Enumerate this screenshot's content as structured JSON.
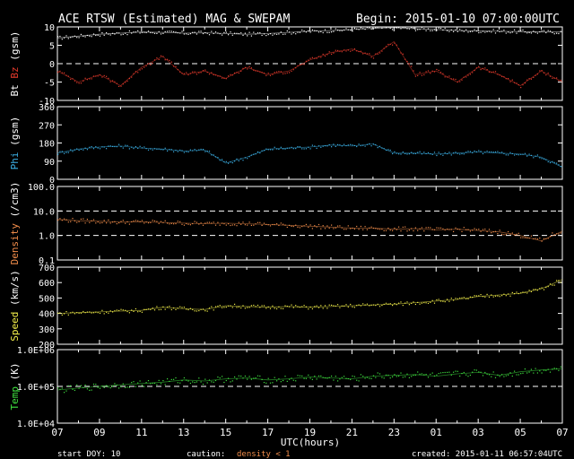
{
  "header": {
    "title": "ACE RTSW (Estimated) MAG & SWEPAM",
    "begin": "Begin: 2015-01-10 07:00:00UTC"
  },
  "footer": {
    "start_doy": "start DOY:  10",
    "caution": "caution:",
    "density_note": "density < 1",
    "created": "created: 2015-01-11 06:57:04UTC"
  },
  "colors": {
    "bt": "#ffffff",
    "bz": "#e43a2c",
    "phi": "#3bb0e6",
    "density": "#f08c4a",
    "speed": "#f2ee4a",
    "temp": "#3fe03f",
    "frame": "#ffffff",
    "background": "#000000"
  },
  "chart_data": [
    {
      "type": "scatter",
      "panel": "mag",
      "ylabel_parts": [
        "Bt",
        "Bz",
        "(gsm)"
      ],
      "ylim": [
        -10,
        10
      ],
      "yticks": [
        10,
        5,
        0,
        -5,
        -10
      ],
      "ref_lines": [
        0
      ],
      "x_hours": [
        0,
        1,
        2,
        3,
        4,
        5,
        6,
        7,
        8,
        9,
        10,
        11,
        12,
        13,
        14,
        15,
        16,
        17,
        18,
        19,
        20,
        21,
        22,
        23,
        24
      ],
      "series": [
        {
          "name": "Bt",
          "color_key": "bt",
          "values": [
            7,
            7.5,
            8,
            8.3,
            8.6,
            8.5,
            8.3,
            8.4,
            8.2,
            8.0,
            8.2,
            8.5,
            8.8,
            9.0,
            9.3,
            9.6,
            9.8,
            9.5,
            9.3,
            9.0,
            8.9,
            8.8,
            8.7,
            8.6,
            8.6
          ]
        },
        {
          "name": "Bz",
          "color_key": "bz",
          "values": [
            -2,
            -5,
            -3,
            -6,
            -1,
            2,
            -3,
            -2,
            -4,
            -1,
            -3,
            -2,
            1,
            3,
            4,
            2,
            6,
            -3,
            -2,
            -5,
            -1,
            -3,
            -6,
            -2,
            -5
          ]
        }
      ]
    },
    {
      "type": "scatter",
      "panel": "phi",
      "ylabel_parts": [
        "Phi",
        "(gsm)"
      ],
      "ylim": [
        0,
        360
      ],
      "yticks": [
        360,
        270,
        180,
        90,
        0
      ],
      "x_hours": [
        0,
        1,
        2,
        3,
        4,
        5,
        6,
        7,
        8,
        9,
        10,
        11,
        12,
        13,
        14,
        15,
        16,
        17,
        18,
        19,
        20,
        21,
        22,
        23,
        24
      ],
      "series": [
        {
          "name": "Phi",
          "color_key": "phi",
          "values": [
            130,
            150,
            160,
            165,
            155,
            150,
            140,
            145,
            80,
            110,
            150,
            155,
            160,
            170,
            165,
            175,
            130,
            130,
            125,
            130,
            135,
            130,
            125,
            110,
            60
          ]
        }
      ]
    },
    {
      "type": "scatter",
      "panel": "density",
      "ylabel_parts": [
        "Density",
        "(/cm3)"
      ],
      "ylim": [
        0.1,
        100
      ],
      "yscale": "log",
      "yticks": [
        100.0,
        10.0,
        1.0,
        0.1
      ],
      "ytick_labels": [
        "100.0",
        "10.0",
        "1.0",
        "0.1"
      ],
      "ref_lines": [
        10,
        1
      ],
      "x_hours": [
        0,
        1,
        2,
        3,
        4,
        5,
        6,
        7,
        8,
        9,
        10,
        11,
        12,
        13,
        14,
        15,
        16,
        17,
        18,
        19,
        20,
        21,
        22,
        23,
        24
      ],
      "series": [
        {
          "name": "Density",
          "color_key": "density",
          "values": [
            4.5,
            4.0,
            3.8,
            3.5,
            3.6,
            3.4,
            3.2,
            3.0,
            3.2,
            3.0,
            2.8,
            2.6,
            2.4,
            2.2,
            2.0,
            2.0,
            1.8,
            1.9,
            1.7,
            1.8,
            1.6,
            1.4,
            1.0,
            0.6,
            1.5
          ]
        }
      ]
    },
    {
      "type": "scatter",
      "panel": "speed",
      "ylabel_parts": [
        "Speed",
        "(km/s)"
      ],
      "ylim": [
        200,
        700
      ],
      "yticks": [
        700,
        600,
        500,
        400,
        300,
        200
      ],
      "x_hours": [
        0,
        1,
        2,
        3,
        4,
        5,
        6,
        7,
        8,
        9,
        10,
        11,
        12,
        13,
        14,
        15,
        16,
        17,
        18,
        19,
        20,
        21,
        22,
        23,
        24
      ],
      "series": [
        {
          "name": "Speed",
          "color_key": "speed",
          "values": [
            400,
            405,
            410,
            415,
            420,
            440,
            430,
            425,
            450,
            445,
            440,
            445,
            440,
            445,
            450,
            455,
            460,
            470,
            480,
            490,
            510,
            520,
            530,
            560,
            620
          ]
        }
      ]
    },
    {
      "type": "scatter",
      "panel": "temp",
      "ylabel_parts": [
        "Temp",
        "(K)"
      ],
      "ylim": [
        10000,
        1000000
      ],
      "yscale": "log",
      "yticks": [
        1000000,
        100000,
        10000
      ],
      "ytick_labels": [
        "1.0E+06",
        "1.0E+05",
        "1.0E+04"
      ],
      "ref_lines": [
        100000
      ],
      "x_hours": [
        0,
        1,
        2,
        3,
        4,
        5,
        6,
        7,
        8,
        9,
        10,
        11,
        12,
        13,
        14,
        15,
        16,
        17,
        18,
        19,
        20,
        21,
        22,
        23,
        24
      ],
      "series": [
        {
          "name": "Temp",
          "color_key": "temp",
          "values": [
            80000,
            90000,
            100000,
            110000,
            120000,
            130000,
            150000,
            140000,
            160000,
            170000,
            150000,
            160000,
            180000,
            170000,
            160000,
            190000,
            200000,
            210000,
            190000,
            220000,
            240000,
            200000,
            250000,
            280000,
            300000
          ]
        }
      ]
    }
  ],
  "x_axis": {
    "label": "UTC(hours)",
    "tick_labels": [
      "07",
      "09",
      "11",
      "13",
      "15",
      "17",
      "19",
      "21",
      "23",
      "01",
      "03",
      "05",
      "07"
    ]
  }
}
